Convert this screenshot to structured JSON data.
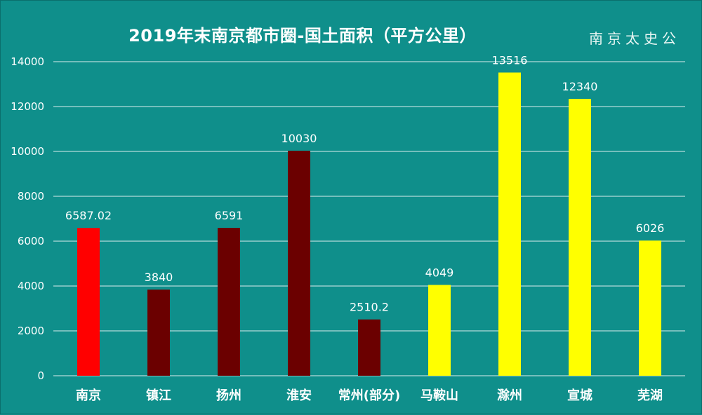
{
  "chart_data": {
    "type": "bar",
    "title": "2019年末南京都市圈-国土面积（平方公里）",
    "watermark": "南京太史公",
    "categories": [
      "南京",
      "镇江",
      "扬州",
      "淮安",
      "常州(部分)",
      "马鞍山",
      "滁州",
      "宣城",
      "芜湖"
    ],
    "values": [
      6587.02,
      3840,
      6591,
      10030,
      2510.2,
      4049,
      13516,
      12340,
      6026
    ],
    "value_labels": [
      "6587.02",
      "3840",
      "6591",
      "10030",
      "2510.2",
      "4049",
      "13516",
      "12340",
      "6026"
    ],
    "bar_colors": [
      "#ff0000",
      "#6b0000",
      "#6b0000",
      "#6b0000",
      "#6b0000",
      "#ffff00",
      "#ffff00",
      "#ffff00",
      "#ffff00"
    ],
    "yticks": [
      0,
      2000,
      4000,
      6000,
      8000,
      10000,
      12000,
      14000
    ],
    "ylim": [
      0,
      14000
    ],
    "grid": true,
    "legend": "none",
    "xlabel": "",
    "ylabel": ""
  }
}
